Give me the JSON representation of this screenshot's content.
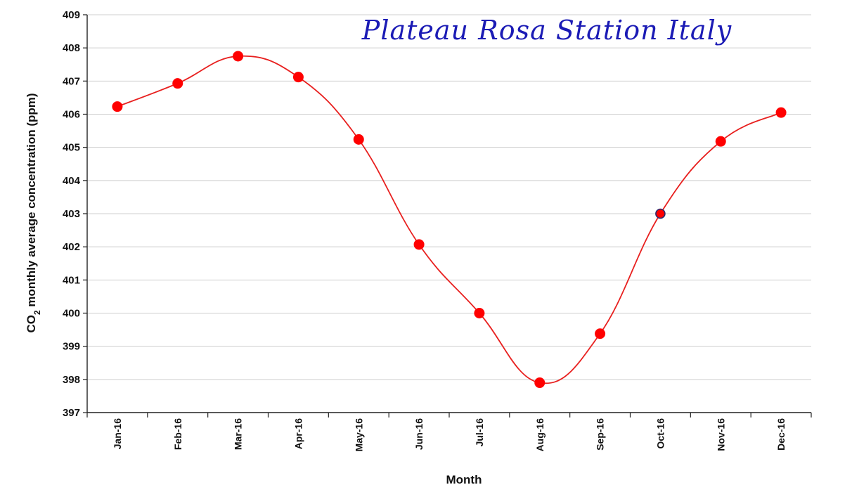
{
  "chart_data": {
    "type": "line",
    "title": "Plateau Rosa Station Italy",
    "xlabel": "Month",
    "ylabel": {
      "prefix": "CO",
      "subscript": "2",
      "suffix": " monthly  average concentration  (ppm)"
    },
    "categories": [
      "Jan-16",
      "Feb-16",
      "Mar-16",
      "Apr-16",
      "May-16",
      "Jun-16",
      "Jul-16",
      "Aug-16",
      "Sep-16",
      "Oct-16",
      "Nov-16",
      "Dec-16"
    ],
    "series": [
      {
        "values": [
          406.23,
          406.93,
          407.75,
          407.12,
          405.24,
          402.07,
          400.0,
          397.9,
          399.38,
          403.0,
          405.18,
          406.05
        ]
      }
    ],
    "ylim": [
      397,
      409
    ],
    "yticks": [
      397,
      398,
      399,
      400,
      401,
      402,
      403,
      404,
      405,
      406,
      407,
      408,
      409
    ],
    "grid": "horizontal",
    "legend": "none",
    "colors": {
      "line": "#e8201f",
      "marker": "#ff0000",
      "highlight_marker_edge": "#2a2a6e",
      "grid": "#cfcfcf",
      "axis": "#222222",
      "title": "#1b1bb5"
    },
    "highlighted_point_index": 9
  }
}
